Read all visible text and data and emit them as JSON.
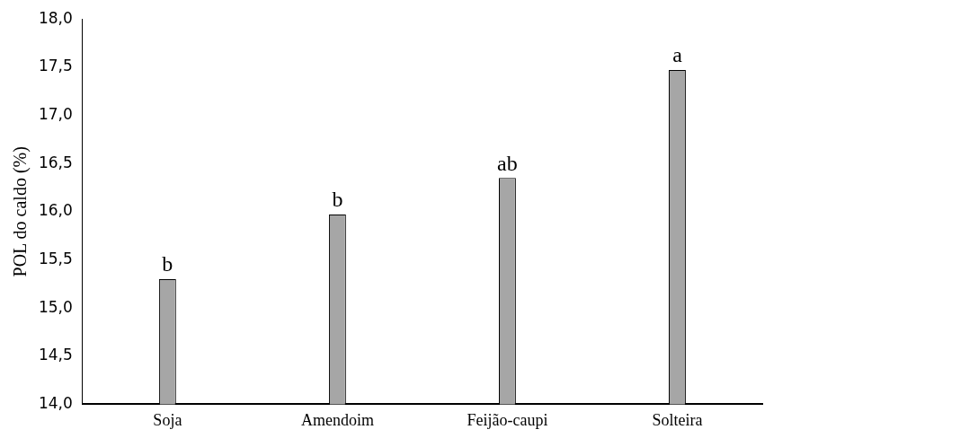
{
  "chart_data": {
    "type": "bar",
    "ylabel": "POL do caldo (%)",
    "categories": [
      "Soja",
      "Amendoim",
      "Feijão-caupi",
      "Solteira"
    ],
    "values": [
      15.3,
      15.97,
      16.35,
      17.47
    ],
    "color": "#a6a6a6",
    "ylim": [
      14,
      18
    ],
    "yticks": [
      {
        "value": 14,
        "label": "14,0"
      },
      {
        "value": 14.5,
        "label": "14,5"
      },
      {
        "value": 15,
        "label": "15,0"
      },
      {
        "value": 15.5,
        "label": "15,5"
      },
      {
        "value": 16,
        "label": "16,0"
      },
      {
        "value": 16.5,
        "label": "16,5"
      },
      {
        "value": 17,
        "label": "17,0"
      },
      {
        "value": 17.5,
        "label": "17,5"
      },
      {
        "value": 18,
        "label": "18,0"
      }
    ],
    "grid": false,
    "legend": false,
    "annotations": [
      {
        "text": "b",
        "x": "Soja",
        "y": 15.3
      },
      {
        "text": "b",
        "x": "Amendoim",
        "y": 15.97
      },
      {
        "text": "ab",
        "x": "Feijão-caupi",
        "y": 16.35
      },
      {
        "text": "a",
        "x": "Solteira",
        "y": 17.47
      }
    ]
  }
}
